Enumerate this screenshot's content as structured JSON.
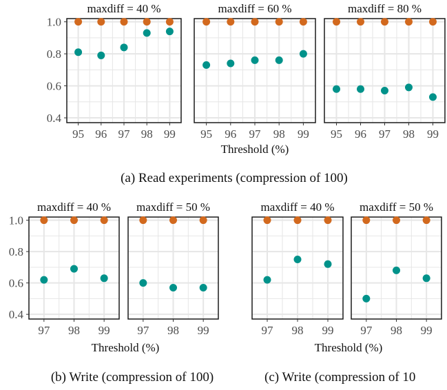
{
  "colors": {
    "series_high": "#D2691E",
    "series_low": "#00928A",
    "grid": "#e6e6e6",
    "frame": "#1a1a1a"
  },
  "captions": {
    "a": "(a) Read experiments (compression of 100)",
    "b": "(b) Write (compression of 100)",
    "c": "(c) Write (compression of 10"
  },
  "axis_labels": {
    "threshold": "Threshold (%)"
  },
  "chart_data": [
    {
      "type": "scatter",
      "group": "a",
      "title": "maxdiff = 40 %",
      "x": [
        95,
        96,
        97,
        98,
        99
      ],
      "xlabel": "",
      "ylim": [
        0.37,
        1.02
      ],
      "yticks": [
        0.4,
        0.6,
        0.8,
        1.0
      ],
      "grid": true,
      "series": [
        {
          "values": [
            1.0,
            1.0,
            1.0,
            1.0,
            1.0
          ]
        },
        {
          "values": [
            0.81,
            0.79,
            0.84,
            0.93,
            0.94
          ]
        }
      ]
    },
    {
      "type": "scatter",
      "group": "a",
      "title": "maxdiff = 60 %",
      "x": [
        95,
        96,
        97,
        98,
        99
      ],
      "xlabel": "Threshold (%)",
      "ylim": [
        0.37,
        1.02
      ],
      "yticks": [
        0.4,
        0.6,
        0.8,
        1.0
      ],
      "grid": true,
      "series": [
        {
          "values": [
            1.0,
            1.0,
            1.0,
            1.0,
            1.0
          ]
        },
        {
          "values": [
            0.73,
            0.74,
            0.76,
            0.76,
            0.8
          ]
        }
      ]
    },
    {
      "type": "scatter",
      "group": "a",
      "title": "maxdiff = 80 %",
      "x": [
        95,
        96,
        97,
        98,
        99
      ],
      "xlabel": "",
      "ylim": [
        0.37,
        1.02
      ],
      "yticks": [
        0.4,
        0.6,
        0.8,
        1.0
      ],
      "grid": true,
      "series": [
        {
          "values": [
            1.0,
            1.0,
            1.0,
            1.0,
            1.0
          ]
        },
        {
          "values": [
            0.58,
            0.58,
            0.57,
            0.59,
            0.53
          ]
        }
      ]
    },
    {
      "type": "scatter",
      "group": "b",
      "title": "maxdiff = 40 %",
      "x": [
        97,
        98,
        99
      ],
      "xlabel": "",
      "ylim": [
        0.37,
        1.02
      ],
      "yticks": [
        0.4,
        0.6,
        0.8,
        1.0
      ],
      "grid": true,
      "series": [
        {
          "values": [
            1.0,
            1.0,
            1.0
          ]
        },
        {
          "values": [
            0.62,
            0.69,
            0.63
          ]
        }
      ]
    },
    {
      "type": "scatter",
      "group": "b",
      "title": "maxdiff = 50 %",
      "x": [
        97,
        98,
        99
      ],
      "xlabel": "",
      "ylim": [
        0.37,
        1.02
      ],
      "yticks": [
        0.4,
        0.6,
        0.8,
        1.0
      ],
      "grid": true,
      "series": [
        {
          "values": [
            1.0,
            1.0,
            1.0
          ]
        },
        {
          "values": [
            0.6,
            0.57,
            0.57
          ]
        }
      ]
    },
    {
      "type": "scatter",
      "group": "c",
      "title": "maxdiff = 40 %",
      "x": [
        97,
        98,
        99
      ],
      "xlabel": "",
      "ylim": [
        0.37,
        1.02
      ],
      "yticks": [
        0.4,
        0.6,
        0.8,
        1.0
      ],
      "grid": true,
      "series": [
        {
          "values": [
            1.0,
            1.0,
            1.0
          ]
        },
        {
          "values": [
            0.62,
            0.75,
            0.72
          ]
        }
      ]
    },
    {
      "type": "scatter",
      "group": "c",
      "title": "maxdiff = 50 %",
      "x": [
        97,
        98,
        99
      ],
      "xlabel": "",
      "ylim": [
        0.37,
        1.02
      ],
      "yticks": [
        0.4,
        0.6,
        0.8,
        1.0
      ],
      "grid": true,
      "series": [
        {
          "values": [
            1.0,
            1.0,
            1.0
          ]
        },
        {
          "values": [
            0.5,
            0.68,
            0.63
          ]
        }
      ]
    }
  ]
}
